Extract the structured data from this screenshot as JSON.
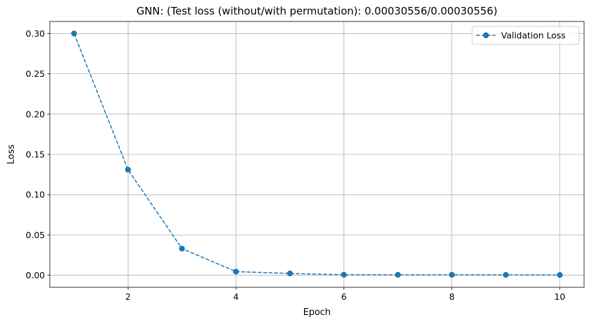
{
  "chart_data": {
    "type": "line",
    "title": "GNN: (Test loss (without/with permutation): 0.00030556/0.00030556)",
    "xlabel": "Epoch",
    "ylabel": "Loss",
    "x": [
      1,
      2,
      3,
      4,
      5,
      6,
      7,
      8,
      9,
      10
    ],
    "series": [
      {
        "name": "Validation Loss",
        "color": "#1f77b4",
        "line_style": "dashed",
        "marker": "circle",
        "values": [
          0.3,
          0.131,
          0.033,
          0.0045,
          0.0022,
          0.0006,
          0.0005,
          0.0005,
          0.0004,
          0.0003
        ]
      }
    ],
    "xlim": [
      0.55,
      10.45
    ],
    "ylim": [
      -0.015,
      0.315
    ],
    "xticks": [
      2,
      4,
      6,
      8,
      10
    ],
    "xtick_labels": [
      "2",
      "4",
      "6",
      "8",
      "10"
    ],
    "yticks": [
      0.0,
      0.05,
      0.1,
      0.15,
      0.2,
      0.25,
      0.3
    ],
    "ytick_labels": [
      "0.00",
      "0.05",
      "0.10",
      "0.15",
      "0.20",
      "0.25",
      "0.30"
    ],
    "grid": true,
    "legend_position": "upper right"
  }
}
